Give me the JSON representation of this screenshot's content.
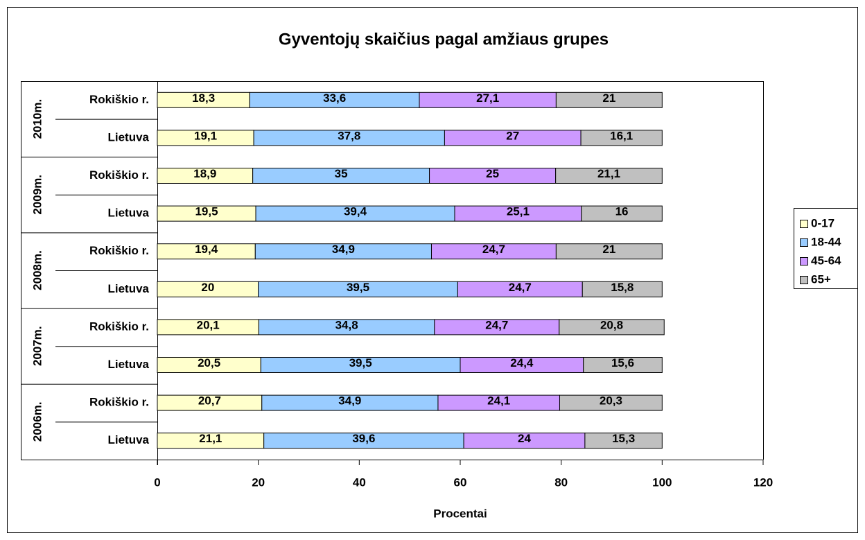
{
  "chart_data": {
    "type": "stacked_bar_horizontal",
    "title": "Gyventojų skaičius pagal amžiaus grupes",
    "xlabel": "Procentai",
    "groups": [
      "2010m.",
      "2009m.",
      "2008m.",
      "2007m.",
      "2006m."
    ],
    "categories": [
      "Rokiškio r.",
      "Lietuva",
      "Rokiškio r.",
      "Lietuva",
      "Rokiškio r.",
      "Lietuva",
      "Rokiškio r.",
      "Lietuva",
      "Rokiškio r.",
      "Lietuva"
    ],
    "series": [
      {
        "name": "0-17",
        "color": "#ffffcc",
        "values": [
          18.3,
          19.1,
          18.9,
          19.5,
          19.4,
          20,
          20.1,
          20.5,
          20.7,
          21.1
        ],
        "value_labels": [
          "18,3",
          "19,1",
          "18,9",
          "19,5",
          "19,4",
          "20",
          "20,1",
          "20,5",
          "20,7",
          "21,1"
        ]
      },
      {
        "name": "18-44",
        "color": "#99ccff",
        "values": [
          33.6,
          37.8,
          35,
          39.4,
          34.9,
          39.5,
          34.8,
          39.5,
          34.9,
          39.6
        ],
        "value_labels": [
          "33,6",
          "37,8",
          "35",
          "39,4",
          "34,9",
          "39,5",
          "34,8",
          "39,5",
          "34,9",
          "39,6"
        ]
      },
      {
        "name": "45-64",
        "color": "#cc99ff",
        "values": [
          27.1,
          27,
          25,
          25.1,
          24.7,
          24.7,
          24.7,
          24.4,
          24.1,
          24
        ],
        "value_labels": [
          "27,1",
          "27",
          "25",
          "25,1",
          "24,7",
          "24,7",
          "24,7",
          "24,4",
          "24,1",
          "24"
        ]
      },
      {
        "name": "65+",
        "color": "#c0c0c0",
        "values": [
          21,
          16.1,
          21.1,
          16,
          21,
          15.8,
          20.8,
          15.6,
          20.3,
          15.3
        ],
        "value_labels": [
          "21",
          "16,1",
          "21,1",
          "16",
          "21",
          "15,8",
          "20,8",
          "15,6",
          "20,3",
          "15,3"
        ]
      }
    ],
    "xlim": [
      0,
      120
    ],
    "xticks": [
      0,
      20,
      40,
      60,
      80,
      100,
      120
    ],
    "legend": "right"
  }
}
